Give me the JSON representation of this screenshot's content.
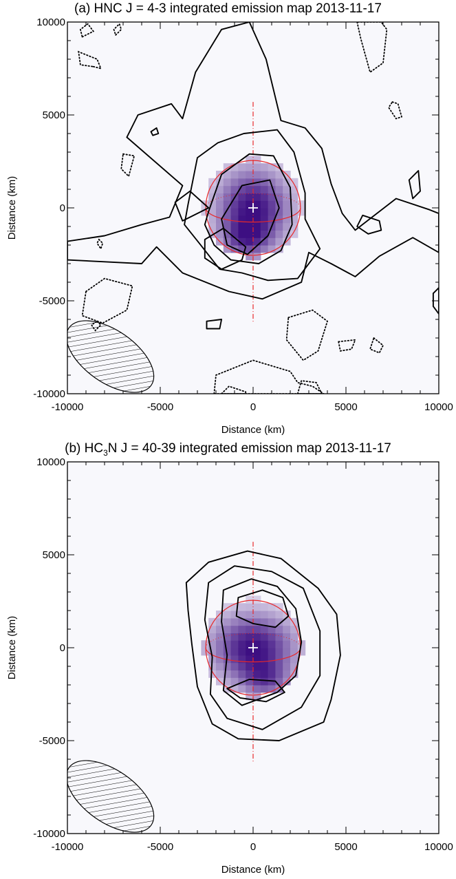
{
  "chart_data": [
    {
      "type": "heatmap",
      "title_prefix": "(a) HNC J = 4-3 integrated emission map 2013-11-17",
      "xlabel": "Distance (km)",
      "ylabel": "Distance (km)",
      "xlim": [
        -10000,
        10000
      ],
      "ylim": [
        -10000,
        10000
      ],
      "x_ticks": [
        -10000,
        -5000,
        0,
        5000,
        10000
      ],
      "y_ticks": [
        -10000,
        -5000,
        0,
        5000,
        10000
      ],
      "colormap": {
        "low": "#f8f8fc",
        "high": "#3d0f82"
      },
      "emission_peak": {
        "x": 0,
        "y": 0,
        "sigma_x": 1500,
        "sigma_y": 1600,
        "secondary_x": -400,
        "secondary_y": -1700
      },
      "nucleus_marker": {
        "x": 0,
        "y": 0,
        "color": "#ffffff"
      },
      "planet_disk": {
        "x": 0,
        "y": 0,
        "radius": 2550,
        "color": "#e8282a"
      },
      "polar_axis": {
        "x": 0,
        "y_min": -6200,
        "y_max": 5700,
        "color": "#e8282a"
      },
      "beam": {
        "x": -7700,
        "y": -8000,
        "a": 2700,
        "b": 1400,
        "angle_deg": -35
      },
      "contours_positive": [
        {
          "level": 1,
          "points": [
            [
              -10000,
              -1800
            ],
            [
              -8000,
              -1500
            ],
            [
              -6000,
              -900
            ],
            [
              -4500,
              -500
            ],
            [
              -3800,
              1200
            ],
            [
              -6800,
              3800
            ],
            [
              -6200,
              5000
            ],
            [
              -4400,
              5600
            ],
            [
              -3800,
              4800
            ],
            [
              -3100,
              7300
            ],
            [
              -1700,
              9600
            ],
            [
              -200,
              10000
            ],
            [
              700,
              8000
            ],
            [
              1500,
              4700
            ],
            [
              2800,
              4300
            ],
            [
              3700,
              3200
            ],
            [
              4200,
              1300
            ],
            [
              4800,
              -300
            ],
            [
              5500,
              -1200
            ],
            [
              7700,
              500
            ],
            [
              9500,
              -100
            ],
            [
              10000,
              -300
            ],
            [
              10000,
              -2400
            ],
            [
              8600,
              -1600
            ],
            [
              6800,
              -2600
            ],
            [
              5500,
              -3700
            ],
            [
              4200,
              -3000
            ],
            [
              3000,
              -2400
            ],
            [
              2600,
              -4000
            ],
            [
              500,
              -4900
            ],
            [
              -1300,
              -4500
            ],
            [
              -3800,
              -3500
            ],
            [
              -5200,
              -2100
            ],
            [
              -6000,
              -3000
            ],
            [
              -8000,
              -2900
            ],
            [
              -10000,
              -2800
            ]
          ]
        },
        {
          "level": 2,
          "points": [
            [
              -3500,
              200
            ],
            [
              -3000,
              2700
            ],
            [
              -1900,
              3500
            ],
            [
              -500,
              4000
            ],
            [
              1300,
              4200
            ],
            [
              2200,
              3000
            ],
            [
              2800,
              800
            ],
            [
              2800,
              -600
            ],
            [
              3600,
              -2200
            ],
            [
              2400,
              -3800
            ],
            [
              800,
              -3900
            ],
            [
              -600,
              -3500
            ],
            [
              -1800,
              -3300
            ],
            [
              -2900,
              -1900
            ],
            [
              -3700,
              -900
            ]
          ]
        },
        {
          "level": 3,
          "points": [
            [
              -2400,
              -200
            ],
            [
              -1700,
              1800
            ],
            [
              -200,
              2900
            ],
            [
              1100,
              2800
            ],
            [
              2000,
              1100
            ],
            [
              2100,
              -900
            ],
            [
              1500,
              -2300
            ],
            [
              300,
              -3000
            ],
            [
              -1200,
              -2800
            ],
            [
              -2100,
              -2000
            ],
            [
              -2600,
              -900
            ]
          ]
        },
        {
          "level": 4,
          "points": [
            [
              -1700,
              -600
            ],
            [
              -600,
              1200
            ],
            [
              900,
              1500
            ],
            [
              1400,
              0
            ],
            [
              800,
              -1500
            ],
            [
              -300,
              -2500
            ],
            [
              -1400,
              -2000
            ]
          ]
        },
        {
          "level": 4,
          "points": [
            [
              -2600,
              -1700
            ],
            [
              -1600,
              -1100
            ],
            [
              -400,
              -2100
            ],
            [
              -600,
              -2800
            ],
            [
              -1700,
              -3300
            ],
            [
              -2600,
              -2700
            ]
          ]
        },
        {
          "level": 1,
          "points": [
            [
              -2400,
              0
            ],
            [
              -3400,
              900
            ],
            [
              -4200,
              300
            ],
            [
              -3800,
              -700
            ]
          ]
        },
        {
          "level": 1,
          "points": [
            [
              5900,
              -400
            ],
            [
              6800,
              -700
            ],
            [
              6900,
              -1200
            ],
            [
              6200,
              -1400
            ],
            [
              5600,
              -1000
            ]
          ]
        },
        {
          "level": 1,
          "points": [
            [
              8400,
              1500
            ],
            [
              8900,
              2000
            ],
            [
              9000,
              900
            ],
            [
              8600,
              500
            ]
          ]
        },
        {
          "level": 1,
          "points": [
            [
              9700,
              -4600
            ],
            [
              10000,
              -4300
            ],
            [
              10000,
              -5700
            ],
            [
              9700,
              -5300
            ]
          ]
        },
        {
          "level": 1,
          "points": [
            [
              -2500,
              -6100
            ],
            [
              -1700,
              -6000
            ],
            [
              -1800,
              -6500
            ],
            [
              -2500,
              -6500
            ]
          ]
        },
        {
          "level": 1,
          "points": [
            [
              -5500,
              4100
            ],
            [
              -5200,
              4300
            ],
            [
              -5100,
              4000
            ],
            [
              -5400,
              3900
            ]
          ]
        }
      ],
      "contours_negative": [
        {
          "points": [
            [
              -7000,
              2900
            ],
            [
              -6400,
              2800
            ],
            [
              -6700,
              1700
            ],
            [
              -7100,
              2100
            ]
          ]
        },
        {
          "points": [
            [
              -8600,
              7600
            ],
            [
              -8200,
              7500
            ],
            [
              -8400,
              8000
            ],
            [
              -9400,
              8400
            ],
            [
              -9300,
              7700
            ]
          ]
        },
        {
          "points": [
            [
              -9200,
              9200
            ],
            [
              -8600,
              9500
            ],
            [
              -8900,
              9900
            ],
            [
              -9300,
              9600
            ]
          ]
        },
        {
          "points": [
            [
              -7400,
              9300
            ],
            [
              -7100,
              9600
            ],
            [
              -7200,
              9900
            ],
            [
              -7500,
              9600
            ]
          ]
        },
        {
          "points": [
            [
              -8300,
              -1700
            ],
            [
              -8100,
              -1900
            ],
            [
              -8200,
              -2200
            ],
            [
              -8400,
              -1900
            ]
          ]
        },
        {
          "points": [
            [
              -9000,
              -4500
            ],
            [
              -8000,
              -3800
            ],
            [
              -6500,
              -4200
            ],
            [
              -6800,
              -5500
            ],
            [
              -8100,
              -6200
            ],
            [
              -9200,
              -5800
            ]
          ]
        },
        {
          "points": [
            [
              1900,
              -5900
            ],
            [
              3200,
              -5500
            ],
            [
              4000,
              -6100
            ],
            [
              3500,
              -7700
            ],
            [
              2700,
              -8200
            ],
            [
              1800,
              -7100
            ]
          ]
        },
        {
          "points": [
            [
              -2100,
              -10000
            ],
            [
              -2000,
              -9000
            ],
            [
              0,
              -8200
            ],
            [
              2000,
              -8800
            ],
            [
              2400,
              -9400
            ],
            [
              3200,
              -9600
            ],
            [
              3800,
              -10000
            ]
          ]
        },
        {
          "points": [
            [
              2400,
              -10000
            ],
            [
              2600,
              -9300
            ],
            [
              3400,
              -9400
            ],
            [
              3700,
              -10000
            ]
          ]
        },
        {
          "points": [
            [
              -1700,
              -10000
            ],
            [
              -1300,
              -9600
            ],
            [
              -400,
              -9900
            ],
            [
              -400,
              -10000
            ]
          ]
        },
        {
          "points": [
            [
              5600,
              10000
            ],
            [
              5800,
              9100
            ],
            [
              6300,
              7300
            ],
            [
              7000,
              7800
            ],
            [
              7200,
              9600
            ],
            [
              6900,
              10000
            ]
          ]
        },
        {
          "points": [
            [
              7500,
              5700
            ],
            [
              7800,
              5600
            ],
            [
              8000,
              4900
            ],
            [
              7700,
              4800
            ],
            [
              7300,
              5400
            ]
          ]
        },
        {
          "points": [
            [
              4600,
              -7200
            ],
            [
              5500,
              -7100
            ],
            [
              5300,
              -7600
            ],
            [
              4700,
              -7700
            ]
          ]
        },
        {
          "points": [
            [
              6500,
              -7000
            ],
            [
              7000,
              -7400
            ],
            [
              6800,
              -7800
            ],
            [
              6300,
              -7600
            ]
          ]
        },
        {
          "points": [
            [
              -8400,
              -6100
            ],
            [
              -8200,
              -6300
            ],
            [
              -8500,
              -6600
            ],
            [
              -8700,
              -6300
            ]
          ]
        }
      ]
    },
    {
      "type": "heatmap",
      "title_prefix": "(b) HC",
      "title_sub": "3",
      "title_suffix": "N J = 40-39 integrated emission map 2013-11-17",
      "xlabel": "Distance (km)",
      "ylabel": "Distance (km)",
      "xlim": [
        -10000,
        10000
      ],
      "ylim": [
        -10000,
        10000
      ],
      "x_ticks": [
        -10000,
        -5000,
        0,
        5000,
        10000
      ],
      "y_ticks": [
        -10000,
        -5000,
        0,
        5000,
        10000
      ],
      "colormap": {
        "low": "#f8f8fc",
        "high": "#3d0f82"
      },
      "emission_peak": {
        "x": 0,
        "y": 0,
        "sigma_x": 1700,
        "sigma_y": 1400,
        "secondary_x": 700,
        "secondary_y": -1800
      },
      "nucleus_marker": {
        "x": 0,
        "y": 0,
        "color": "#ffffff"
      },
      "planet_disk": {
        "x": 0,
        "y": 0,
        "radius": 2550,
        "color": "#e8282a"
      },
      "polar_axis": {
        "x": 0,
        "y_min": -6200,
        "y_max": 5700,
        "color": "#e8282a"
      },
      "beam": {
        "x": -7700,
        "y": -8000,
        "a": 2700,
        "b": 1400,
        "angle_deg": -35
      },
      "contours_positive": [
        {
          "level": 1,
          "points": [
            [
              -3600,
              3500
            ],
            [
              -2400,
              4600
            ],
            [
              -300,
              5200
            ],
            [
              1500,
              4800
            ],
            [
              3500,
              3200
            ],
            [
              4500,
              1800
            ],
            [
              4700,
              -400
            ],
            [
              4200,
              -2800
            ],
            [
              3800,
              -4000
            ],
            [
              1400,
              -5000
            ],
            [
              -800,
              -4900
            ],
            [
              -2200,
              -4100
            ],
            [
              -3000,
              -2100
            ],
            [
              -3300,
              200
            ],
            [
              -3500,
              2000
            ]
          ]
        },
        {
          "level": 2,
          "points": [
            [
              -2400,
              3500
            ],
            [
              -1000,
              4400
            ],
            [
              1000,
              4100
            ],
            [
              2700,
              3200
            ],
            [
              3600,
              900
            ],
            [
              3600,
              -1500
            ],
            [
              2600,
              -3200
            ],
            [
              500,
              -4400
            ],
            [
              -1400,
              -3800
            ],
            [
              -2300,
              -2500
            ],
            [
              -2200,
              -500
            ],
            [
              -2600,
              1500
            ]
          ]
        },
        {
          "level": 3,
          "points": [
            [
              -1600,
              3100
            ],
            [
              -100,
              3700
            ],
            [
              1300,
              3300
            ],
            [
              2300,
              2100
            ],
            [
              2600,
              300
            ],
            [
              2300,
              -1500
            ],
            [
              1300,
              -2400
            ],
            [
              -600,
              -3100
            ],
            [
              -1600,
              -2300
            ],
            [
              -1400,
              -400
            ],
            [
              -1700,
              1400
            ]
          ]
        },
        {
          "level": 4,
          "points": [
            [
              -800,
              2700
            ],
            [
              500,
              3100
            ],
            [
              1600,
              2700
            ],
            [
              1900,
              1700
            ],
            [
              1200,
              1100
            ],
            [
              0,
              1300
            ],
            [
              -900,
              1700
            ]
          ]
        },
        {
          "level": 4,
          "points": [
            [
              -1400,
              -2200
            ],
            [
              -200,
              -1700
            ],
            [
              1200,
              -1800
            ],
            [
              1700,
              -2400
            ],
            [
              700,
              -2900
            ],
            [
              -700,
              -2700
            ]
          ]
        }
      ],
      "contours_negative": []
    }
  ]
}
